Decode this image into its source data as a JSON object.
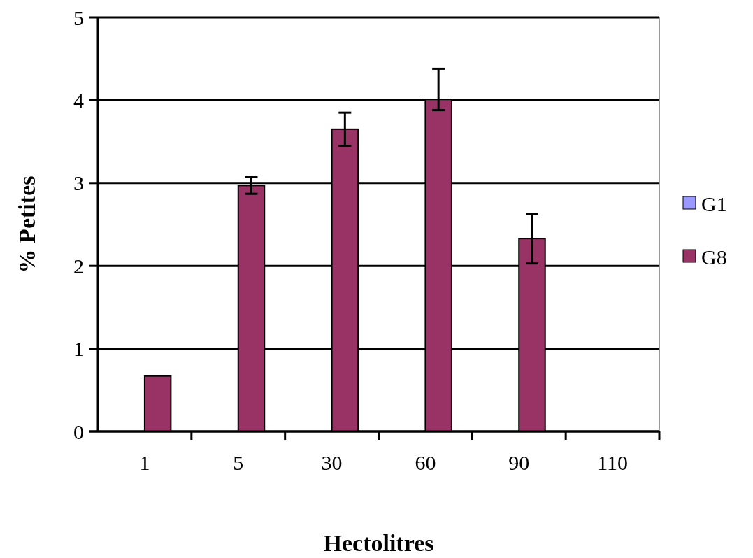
{
  "chart_data": {
    "type": "bar",
    "xlabel": "Hectolitres",
    "ylabel": "% Petites",
    "categories": [
      "1",
      "5",
      "30",
      "60",
      "90",
      "110"
    ],
    "series": [
      {
        "name": "G1",
        "color": "#9999ff",
        "values": [
          null,
          null,
          null,
          null,
          null,
          null
        ]
      },
      {
        "name": "G8",
        "color": "#993366",
        "values": [
          0.67,
          2.97,
          3.65,
          4.01,
          2.33,
          null
        ],
        "errors": [
          null,
          0.1,
          0.2,
          [
            3.88,
            4.38
          ],
          0.3,
          null
        ]
      }
    ],
    "ylim": [
      0,
      5
    ],
    "yticks": [
      0,
      1,
      2,
      3,
      4,
      5
    ],
    "grid": "y",
    "legend": "right"
  }
}
